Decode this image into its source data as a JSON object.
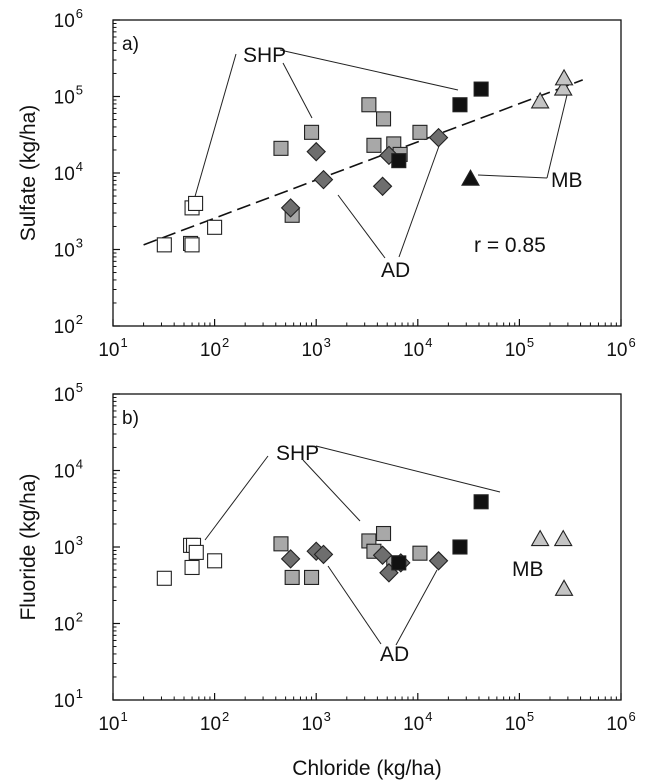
{
  "chart_data": [
    {
      "type": "scatter",
      "panel_label": "a)",
      "xlabel": "",
      "ylabel": "Sulfate (kg/ha)",
      "x_scale": "log",
      "y_scale": "log",
      "xlim": [
        10,
        1000000
      ],
      "ylim": [
        100,
        1000000
      ],
      "x_ticks": [
        {
          "base": "10",
          "exp": "1"
        },
        {
          "base": "10",
          "exp": "2"
        },
        {
          "base": "10",
          "exp": "3"
        },
        {
          "base": "10",
          "exp": "4"
        },
        {
          "base": "10",
          "exp": "5"
        },
        {
          "base": "10",
          "exp": "6"
        }
      ],
      "y_ticks": [
        {
          "base": "10",
          "exp": "2"
        },
        {
          "base": "10",
          "exp": "3"
        },
        {
          "base": "10",
          "exp": "4"
        },
        {
          "base": "10",
          "exp": "5"
        },
        {
          "base": "10",
          "exp": "6"
        }
      ],
      "grid": false,
      "legend": "none",
      "annotations": [
        {
          "text": "SHP"
        },
        {
          "text": "AD"
        },
        {
          "text": "MB"
        },
        {
          "text": "r = 0.85"
        }
      ],
      "trendline": {
        "style": "dashed",
        "x": [
          20,
          420000
        ],
        "y": [
          1150,
          165000
        ]
      },
      "series": [
        {
          "marker": "square",
          "fill": "#ffffff",
          "points": [
            [
              32,
              1150
            ],
            [
              58,
              1200
            ],
            [
              60,
              1150
            ],
            [
              60,
              3500
            ],
            [
              65,
              4000
            ],
            [
              100,
              1950
            ]
          ]
        },
        {
          "marker": "square",
          "fill": "#a8a8a8",
          "points": [
            [
              450,
              21000
            ],
            [
              580,
              2800
            ],
            [
              900,
              34000
            ],
            [
              3300,
              78000
            ],
            [
              3700,
              23000
            ],
            [
              4600,
              51000
            ],
            [
              5800,
              24000
            ],
            [
              6700,
              17500
            ],
            [
              10500,
              34000
            ]
          ]
        },
        {
          "marker": "diamond",
          "fill": "#6e6e6e",
          "points": [
            [
              560,
              3500
            ],
            [
              1000,
              19000
            ],
            [
              1180,
              8200
            ],
            [
              4500,
              6700
            ],
            [
              5200,
              17000
            ],
            [
              16000,
              29000
            ]
          ]
        },
        {
          "marker": "square",
          "fill": "#111111",
          "points": [
            [
              6500,
              14500
            ],
            [
              26000,
              78000
            ],
            [
              42000,
              125000
            ]
          ]
        },
        {
          "marker": "triangle",
          "fill": "#c4c4c4",
          "points": [
            [
              160000,
              85000
            ],
            [
              270000,
              125000
            ],
            [
              275000,
              170000
            ]
          ]
        },
        {
          "marker": "triangle",
          "fill": "#111111",
          "points": [
            [
              33000,
              8300
            ]
          ]
        }
      ]
    },
    {
      "type": "scatter",
      "panel_label": "b)",
      "xlabel": "Chloride (kg/ha)",
      "ylabel": "Fluoride (kg/ha)",
      "x_scale": "log",
      "y_scale": "log",
      "xlim": [
        10,
        1000000
      ],
      "ylim": [
        10,
        100000
      ],
      "x_ticks": [
        {
          "base": "10",
          "exp": "1"
        },
        {
          "base": "10",
          "exp": "2"
        },
        {
          "base": "10",
          "exp": "3"
        },
        {
          "base": "10",
          "exp": "4"
        },
        {
          "base": "10",
          "exp": "5"
        },
        {
          "base": "10",
          "exp": "6"
        }
      ],
      "y_ticks": [
        {
          "base": "10",
          "exp": "1"
        },
        {
          "base": "10",
          "exp": "2"
        },
        {
          "base": "10",
          "exp": "3"
        },
        {
          "base": "10",
          "exp": "4"
        },
        {
          "base": "10",
          "exp": "5"
        }
      ],
      "grid": false,
      "legend": "none",
      "annotations": [
        {
          "text": "SHP"
        },
        {
          "text": "AD"
        },
        {
          "text": "MB"
        }
      ],
      "series": [
        {
          "marker": "square",
          "fill": "#ffffff",
          "points": [
            [
              32,
              390
            ],
            [
              58,
              1050
            ],
            [
              60,
              540
            ],
            [
              62,
              1050
            ],
            [
              66,
              850
            ],
            [
              100,
              660
            ]
          ]
        },
        {
          "marker": "square",
          "fill": "#a8a8a8",
          "points": [
            [
              450,
              1100
            ],
            [
              580,
              400
            ],
            [
              900,
              400
            ],
            [
              3300,
              1200
            ],
            [
              3700,
              880
            ],
            [
              4600,
              1500
            ],
            [
              5800,
              620
            ],
            [
              10500,
              830
            ]
          ]
        },
        {
          "marker": "diamond",
          "fill": "#6e6e6e",
          "points": [
            [
              560,
              700
            ],
            [
              1000,
              880
            ],
            [
              1180,
              800
            ],
            [
              4500,
              780
            ],
            [
              5200,
              460
            ],
            [
              6800,
              620
            ],
            [
              16000,
              660
            ]
          ]
        },
        {
          "marker": "square",
          "fill": "#111111",
          "points": [
            [
              6500,
              620
            ],
            [
              26000,
              1000
            ],
            [
              42000,
              3900
            ]
          ]
        },
        {
          "marker": "triangle",
          "fill": "#c4c4c4",
          "points": [
            [
              160000,
              1250
            ],
            [
              270000,
              1250
            ],
            [
              275000,
              280
            ]
          ]
        }
      ]
    }
  ]
}
